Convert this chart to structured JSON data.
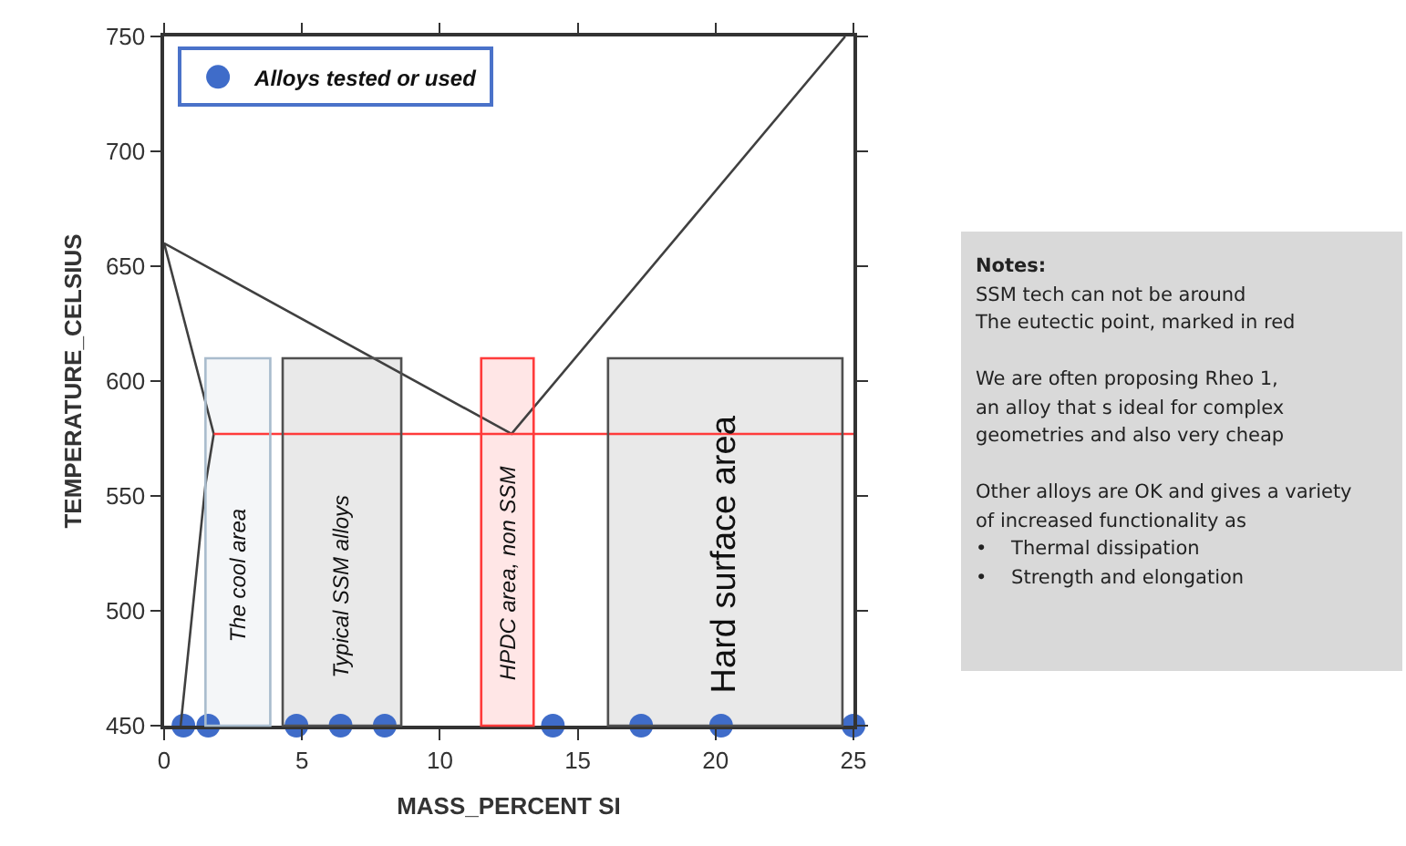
{
  "chart_data": [
    {
      "type": "scatter",
      "xlabel": "MASS_PERCENT SI",
      "ylabel": "TEMPERATURE_CELSIUS",
      "xlim": [
        0,
        25
      ],
      "xticks": [
        0,
        5,
        10,
        15,
        20,
        25
      ],
      "ylim": [
        450,
        750
      ],
      "yticks": [
        450,
        500,
        550,
        600,
        650,
        700,
        750
      ],
      "grid": false,
      "legend": "top left",
      "series": [
        {
          "name": "Alloys tested or used",
          "color": "#3f6cc9",
          "marker": "circle",
          "x": [
            0.7,
            1.6,
            4.8,
            6.4,
            8.0,
            14.1,
            17.3,
            20.2,
            25.0
          ],
          "values": [
            450,
            450,
            450,
            450,
            450,
            450,
            450,
            450,
            450
          ]
        },
        {
          "type": "line",
          "color": "#404040",
          "x": [
            24.7,
            12.6,
            0,
            1.8,
            1.5,
            0.6
          ],
          "values": [
            750,
            577,
            660,
            577,
            555,
            450
          ]
        },
        {
          "type": "line",
          "color": "#ff3b3b",
          "x": [
            1.8,
            25
          ],
          "values": [
            577,
            577
          ]
        }
      ],
      "bands": [
        {
          "axis": "x",
          "from": 1.5,
          "to": 3.85,
          "label": "The cool area",
          "color": "#a9bccd"
        },
        {
          "axis": "x",
          "from": 4.3,
          "to": 8.6,
          "label": "Typical SSM alloys",
          "color": "#505050"
        },
        {
          "axis": "x",
          "from": 11.5,
          "to": 13.4,
          "label": "HPDC area, non SSM",
          "color": "#ff3b3b"
        },
        {
          "axis": "x",
          "from": 16.1,
          "to": 24.6,
          "label": "Hard surface area",
          "color": "#505050"
        }
      ]
    },
    {
      "type": "other",
      "annotations": [
        "Notes:",
        "SSM tech can not be around\nThe eutectic point, marked in red",
        "We are often proposing Rheo 1,\nan alloy that s ideal for complex\ngeometries and also very cheap",
        "Other alloys are OK and gives a variety\nof increased functionality as\n•    Thermal dissipation\n•    Strength and elongation"
      ]
    }
  ]
}
